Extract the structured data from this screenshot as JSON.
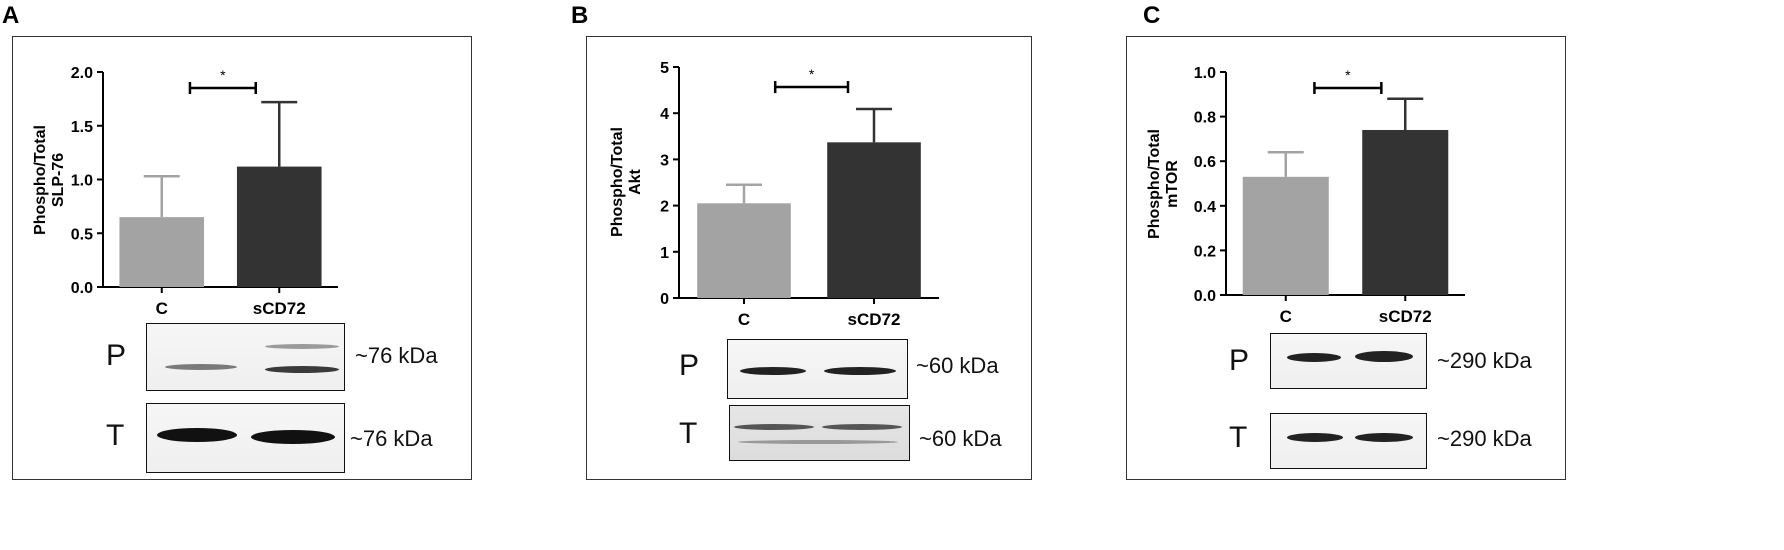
{
  "chart_data": [
    {
      "type": "bar",
      "panel": "A",
      "title": "",
      "xlabel": "",
      "ylabel": "Phospho/Total SLP-76",
      "ylabel_lines": [
        "Phospho/Total",
        "SLP-76"
      ],
      "categories": [
        "C",
        "sCD72"
      ],
      "values": [
        0.65,
        1.12
      ],
      "errors": [
        0.38,
        0.6
      ],
      "colors": [
        "#a3a3a3",
        "#333333"
      ],
      "ylim": [
        0,
        2.0
      ],
      "yticks": [
        "0.0",
        "0.5",
        "1.0",
        "1.5",
        "2.0"
      ],
      "significance": "*",
      "grid": false,
      "legend": "none",
      "blots": [
        {
          "letter": "P",
          "size": "~76 kDa"
        },
        {
          "letter": "T",
          "size": "~76 kDa"
        }
      ]
    },
    {
      "type": "bar",
      "panel": "B",
      "title": "",
      "xlabel": "",
      "ylabel": "Phospho/Total Akt",
      "ylabel_lines": [
        "Phospho/Total",
        "Akt"
      ],
      "categories": [
        "C",
        "sCD72"
      ],
      "values": [
        2.05,
        3.37
      ],
      "errors": [
        0.4,
        0.72
      ],
      "colors": [
        "#a3a3a3",
        "#333333"
      ],
      "ylim": [
        0,
        5
      ],
      "yticks": [
        "0",
        "1",
        "2",
        "3",
        "4",
        "5"
      ],
      "significance": "*",
      "grid": false,
      "legend": "none",
      "blots": [
        {
          "letter": "P",
          "size": "~60 kDa"
        },
        {
          "letter": "T",
          "size": "~60 kDa"
        }
      ]
    },
    {
      "type": "bar",
      "panel": "C",
      "title": "",
      "xlabel": "",
      "ylabel": "Phospho/Total mTOR",
      "ylabel_lines": [
        "Phospho/Total",
        "mTOR"
      ],
      "categories": [
        "C",
        "sCD72"
      ],
      "values": [
        0.53,
        0.74
      ],
      "errors": [
        0.11,
        0.14
      ],
      "colors": [
        "#a3a3a3",
        "#333333"
      ],
      "ylim": [
        0,
        1.0
      ],
      "yticks": [
        "0.0",
        "0.2",
        "0.4",
        "0.6",
        "0.8",
        "1.0"
      ],
      "significance": "*",
      "grid": false,
      "legend": "none",
      "blots": [
        {
          "letter": "P",
          "size": "~290 kDa"
        },
        {
          "letter": "T",
          "size": "~290 kDa"
        }
      ]
    }
  ]
}
